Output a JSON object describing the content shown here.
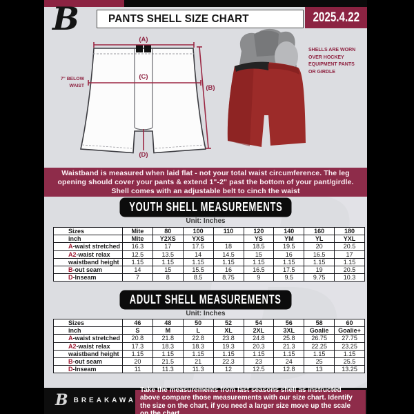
{
  "colors": {
    "maroon": "#8c2342",
    "band_maroon": "#8e2c4a",
    "accent_red": "#9e1b32",
    "page_bg": "#dcdde1",
    "black": "#0a0a0a",
    "shell_red": "#9c2b29"
  },
  "logo": {
    "letter": "B",
    "brand": "BREAKAWAY"
  },
  "header": {
    "title": "PANTS SHELL SIZE CHART",
    "date": "2025.4.22"
  },
  "diagram": {
    "label_a": "(A)",
    "label_b": "(B)",
    "label_c": "(C)",
    "label_d": "(D)",
    "waist_note_line1": "7\" BELOW",
    "waist_note_line2": "WAIST",
    "photo_note": "SHELLS ARE WORN OVER HOCKEY EQUIPMENT PANTS OR GIRDLE"
  },
  "info_band": {
    "text": "Waistband is measured when laid flat - not your total waist circumference. The leg opening should cover your pants & extend 1\"-2\" past the bottom of your pant/girdle. Shell comes with an adjustable belt to cinch the waist"
  },
  "youth": {
    "title": "YOUTH SHELL MEASUREMENTS",
    "unit": "Unit: Inches",
    "table": {
      "header_rows": [
        [
          "Sizes",
          "Mite",
          "80",
          "100",
          "110",
          "120",
          "140",
          "160",
          "180"
        ],
        [
          "inch",
          "Mite",
          "Y2XS",
          "YXS",
          "",
          "YS",
          "YM",
          "YL",
          "YXL"
        ]
      ],
      "rows": [
        {
          "accent": "A",
          "label": "-waist stretched",
          "values": [
            "16.3",
            "17",
            "17.5",
            "18",
            "18.5",
            "19.5",
            "20",
            "20.5"
          ]
        },
        {
          "accent": "A2",
          "label": "-waist relax",
          "values": [
            "12.5",
            "13.5",
            "14",
            "14.5",
            "15",
            "16",
            "16.5",
            "17"
          ]
        },
        {
          "accent": "",
          "label": "waistband height",
          "values": [
            "1.15",
            "1.15",
            "1.15",
            "1.15",
            "1.15",
            "1.15",
            "1.15",
            "1.15"
          ]
        },
        {
          "accent": "B",
          "label": "-out seam",
          "values": [
            "14",
            "15",
            "15.5",
            "16",
            "16.5",
            "17.5",
            "19",
            "20.5"
          ]
        },
        {
          "accent": "D",
          "label": "-Inseam",
          "values": [
            "7",
            "8",
            "8.5",
            "8.75",
            "9",
            "9.5",
            "9.75",
            "10.3"
          ]
        }
      ]
    }
  },
  "adult": {
    "title": "ADULT SHELL MEASUREMENTS",
    "unit": "Unit: Inches",
    "table": {
      "header_rows": [
        [
          "Sizes",
          "46",
          "48",
          "50",
          "52",
          "54",
          "56",
          "58",
          "60"
        ],
        [
          "inch",
          "S",
          "M",
          "L",
          "XL",
          "2XL",
          "3XL",
          "Goalie",
          "Goalie+"
        ]
      ],
      "rows": [
        {
          "accent": "A",
          "label": "-waist stretched",
          "values": [
            "20.8",
            "21.8",
            "22.8",
            "23.8",
            "24.8",
            "25.8",
            "26.75",
            "27.75"
          ]
        },
        {
          "accent": "A2",
          "label": "-waist relax",
          "values": [
            "17.3",
            "18.3",
            "18.3",
            "19.3",
            "20.3",
            "21.3",
            "22.25",
            "23.25"
          ]
        },
        {
          "accent": "",
          "label": "waistband height",
          "values": [
            "1.15",
            "1.15",
            "1.15",
            "1.15",
            "1.15",
            "1.15",
            "1.15",
            "1.15"
          ]
        },
        {
          "accent": "B",
          "label": "-out seam",
          "values": [
            "20",
            "21.5",
            "21",
            "22.3",
            "23",
            "24",
            "25",
            "25.5"
          ]
        },
        {
          "accent": "D",
          "label": "-Inseam",
          "values": [
            "11",
            "11.3",
            "11.3",
            "12",
            "12.5",
            "12.8",
            "13",
            "13.25"
          ]
        }
      ]
    }
  },
  "footer": {
    "note": "Take the measurements from last seasons shell as instructed above compare those measurements  with our size chart. Identify the size on the chart, if you need a larger size move up the scale on the chart"
  }
}
